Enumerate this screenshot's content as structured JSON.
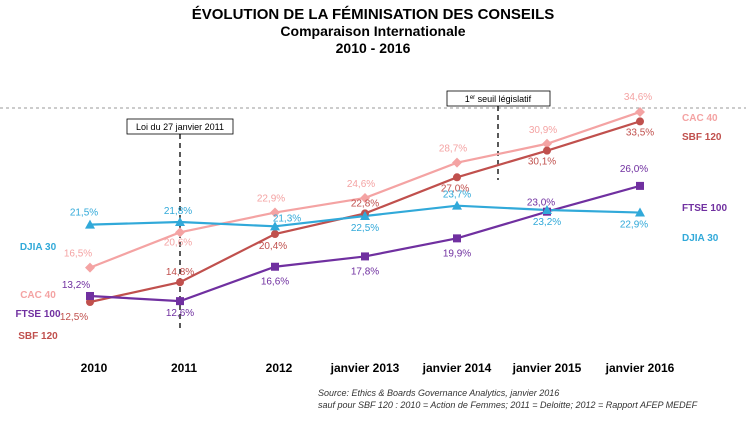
{
  "chart_data": {
    "type": "line",
    "title": "ÉVOLUTION DE LA FÉMINISATION DES CONSEILS",
    "subtitle": "Comparaison Internationale",
    "period": "2010 - 2016",
    "categories": [
      "2010",
      "2011",
      "2012",
      "janvier 2013",
      "janvier 2014",
      "janvier 2015",
      "janvier 2016"
    ],
    "ylim": [
      10,
      36
    ],
    "grid": false,
    "series": [
      {
        "name": "CAC 40",
        "color": "#f4a3a3",
        "marker": "diamond",
        "values": [
          16.5,
          20.6,
          22.9,
          24.6,
          28.7,
          30.9,
          34.6
        ],
        "labels": [
          "16,5%",
          "20,6%",
          "22,9%",
          "24,6%",
          "28,7%",
          "30,9%",
          "34,6%"
        ]
      },
      {
        "name": "SBF 120",
        "color": "#c0504d",
        "marker": "circle",
        "values": [
          12.5,
          14.8,
          20.4,
          22.8,
          27.0,
          30.1,
          33.5
        ],
        "labels": [
          "12,5%",
          "14,8%",
          "20,4%",
          "22,8%",
          "27,0%",
          "30,1%",
          "33,5%"
        ]
      },
      {
        "name": "FTSE 100",
        "color": "#7030a0",
        "marker": "square",
        "values": [
          13.2,
          12.6,
          16.6,
          17.8,
          19.9,
          23.0,
          26.0
        ],
        "labels": [
          "13,2%",
          "12,6%",
          "16,6%",
          "17,8%",
          "19,9%",
          "23,0%",
          "26,0%"
        ]
      },
      {
        "name": "DJIA 30",
        "color": "#31a9d9",
        "marker": "triangle",
        "values": [
          21.5,
          21.8,
          21.3,
          22.5,
          23.7,
          23.2,
          22.9
        ],
        "labels": [
          "21,5%",
          "21,8%",
          "21,3%",
          "22,5%",
          "23,7%",
          "23,2%",
          "22,9%"
        ]
      }
    ],
    "annotations": [
      {
        "text": "Loi du 27 janvier 2011",
        "category": "2011"
      },
      {
        "text_main": "1",
        "text_sup": "er",
        "text_rest": " seuil législatif",
        "category": "janvier 2014"
      }
    ]
  },
  "source": {
    "line1": "Source:  Ethics & Boards  Governance  Analytics, janvier 2016",
    "line2": "sauf pour SBF 120 : 2010 = Action de Femmes; 2011 = Deloitte; 2012 = Rapport  AFEP  MEDEF"
  }
}
